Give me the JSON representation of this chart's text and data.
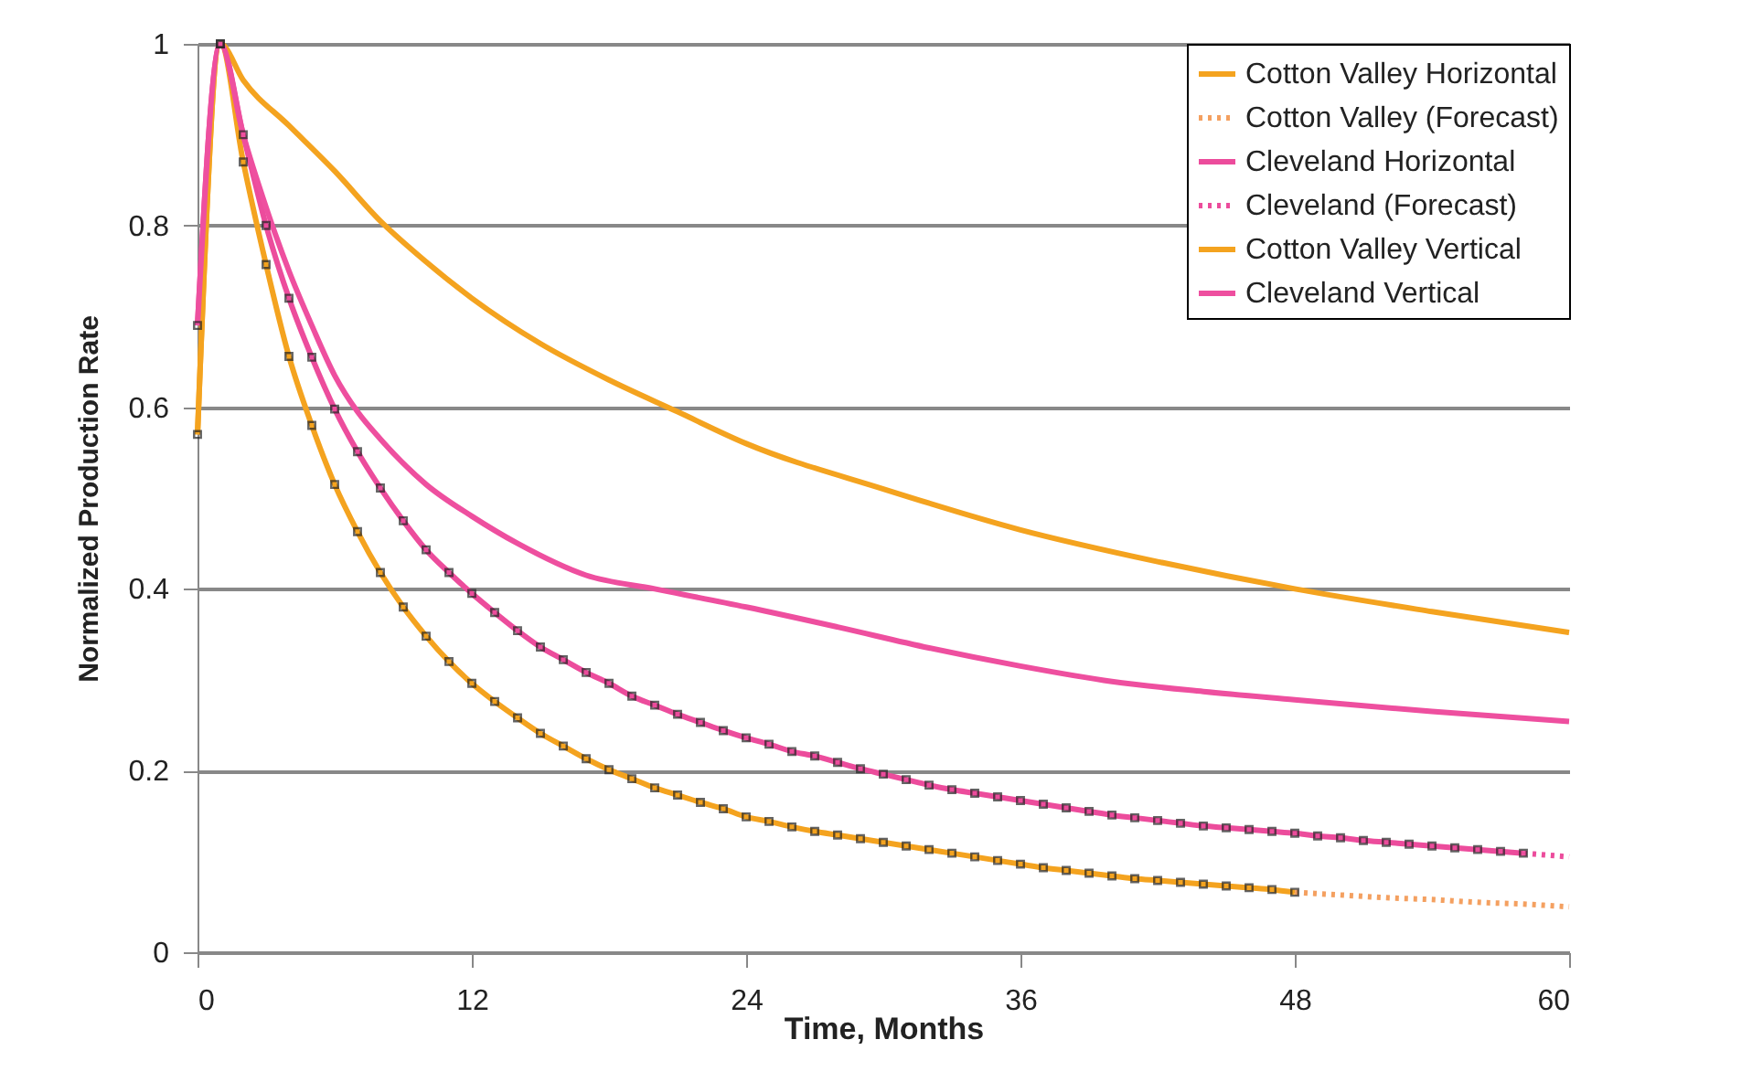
{
  "chart_data": {
    "type": "line",
    "xlabel": "Time, Months",
    "ylabel": "Normalized Production Rate",
    "xlim": [
      0,
      60
    ],
    "xticks": [
      0,
      12,
      24,
      36,
      48,
      60
    ],
    "ylim": [
      0,
      1
    ],
    "yticks": [
      0,
      0.2,
      0.4,
      0.6,
      0.8,
      1
    ],
    "grid": "y",
    "legend": "top right",
    "series": [
      {
        "name": "Cotton Valley Horizontal",
        "color": "#f4a31f",
        "marker": "square",
        "line_style": "solid",
        "x": [
          0,
          1,
          2,
          3,
          4,
          5,
          6,
          7,
          8,
          9,
          10,
          11,
          12,
          13,
          14,
          15,
          16,
          17,
          18,
          19,
          20,
          21,
          22,
          23,
          24,
          25,
          26,
          27,
          28,
          29,
          30,
          31,
          32,
          33,
          34,
          35,
          36,
          37,
          38,
          39,
          40,
          41,
          42,
          43,
          44,
          45,
          46,
          47,
          48
        ],
        "values": [
          0.57,
          1.0,
          0.87,
          0.757,
          0.656,
          0.58,
          0.515,
          0.463,
          0.418,
          0.38,
          0.348,
          0.32,
          0.296,
          0.276,
          0.258,
          0.241,
          0.227,
          0.213,
          0.201,
          0.191,
          0.181,
          0.173,
          0.165,
          0.158,
          0.149,
          0.144,
          0.138,
          0.133,
          0.129,
          0.125,
          0.121,
          0.117,
          0.113,
          0.109,
          0.105,
          0.101,
          0.097,
          0.093,
          0.09,
          0.087,
          0.084,
          0.081,
          0.079,
          0.077,
          0.075,
          0.073,
          0.071,
          0.069,
          0.066
        ]
      },
      {
        "name": "Cotton Valley (Forecast)",
        "color": "#f4a060",
        "marker": "none",
        "line_style": "dotted",
        "x": [
          48,
          50,
          52,
          54,
          56,
          58,
          60
        ],
        "values": [
          0.066,
          0.063,
          0.06,
          0.058,
          0.055,
          0.053,
          0.05
        ]
      },
      {
        "name": "Cleveland Horizontal",
        "color": "#ec4c9c",
        "marker": "square",
        "line_style": "solid",
        "x": [
          0,
          1,
          2,
          3,
          4,
          5,
          6,
          7,
          8,
          9,
          10,
          11,
          12,
          13,
          14,
          15,
          16,
          17,
          18,
          19,
          20,
          21,
          22,
          23,
          24,
          25,
          26,
          27,
          28,
          29,
          30,
          31,
          32,
          33,
          34,
          35,
          36,
          37,
          38,
          39,
          40,
          41,
          42,
          43,
          44,
          45,
          46,
          47,
          48,
          49,
          50,
          51,
          52,
          53,
          54,
          55,
          56,
          57,
          58
        ],
        "values": [
          0.69,
          1.0,
          0.9,
          0.8,
          0.72,
          0.655,
          0.598,
          0.551,
          0.511,
          0.475,
          0.443,
          0.418,
          0.395,
          0.374,
          0.354,
          0.336,
          0.322,
          0.308,
          0.296,
          0.282,
          0.272,
          0.262,
          0.253,
          0.244,
          0.236,
          0.229,
          0.221,
          0.216,
          0.209,
          0.202,
          0.196,
          0.19,
          0.184,
          0.179,
          0.175,
          0.171,
          0.167,
          0.163,
          0.159,
          0.155,
          0.151,
          0.148,
          0.145,
          0.142,
          0.139,
          0.137,
          0.135,
          0.133,
          0.131,
          0.128,
          0.126,
          0.123,
          0.121,
          0.119,
          0.117,
          0.115,
          0.113,
          0.111,
          0.109
        ]
      },
      {
        "name": "Cleveland (Forecast)",
        "color": "#ec4c9c",
        "marker": "none",
        "line_style": "dotted",
        "x": [
          58,
          59,
          60
        ],
        "values": [
          0.109,
          0.107,
          0.105
        ]
      },
      {
        "name": "Cotton Valley Vertical",
        "color": "#f4a31f",
        "marker": "none",
        "line_style": "solid",
        "x": [
          0,
          1,
          2,
          4,
          6,
          8,
          10,
          12,
          15,
          18,
          21,
          24,
          30,
          36,
          42,
          48,
          54,
          60
        ],
        "values": [
          0.57,
          1.0,
          0.96,
          0.91,
          0.86,
          0.805,
          0.76,
          0.72,
          0.67,
          0.63,
          0.595,
          0.56,
          0.51,
          0.465,
          0.43,
          0.4,
          0.375,
          0.352
        ]
      },
      {
        "name": "Cleveland Vertical",
        "color": "#ee4f9f",
        "marker": "none",
        "line_style": "solid",
        "x": [
          0,
          1,
          2,
          3,
          4,
          5,
          6,
          7,
          8,
          10,
          12,
          14,
          17,
          20,
          24,
          28,
          32,
          36,
          40,
          44,
          48,
          54,
          60
        ],
        "values": [
          0.69,
          1.0,
          0.9,
          0.82,
          0.75,
          0.69,
          0.635,
          0.595,
          0.565,
          0.515,
          0.48,
          0.45,
          0.415,
          0.4,
          0.38,
          0.358,
          0.335,
          0.315,
          0.298,
          0.287,
          0.278,
          0.265,
          0.254
        ]
      }
    ]
  }
}
